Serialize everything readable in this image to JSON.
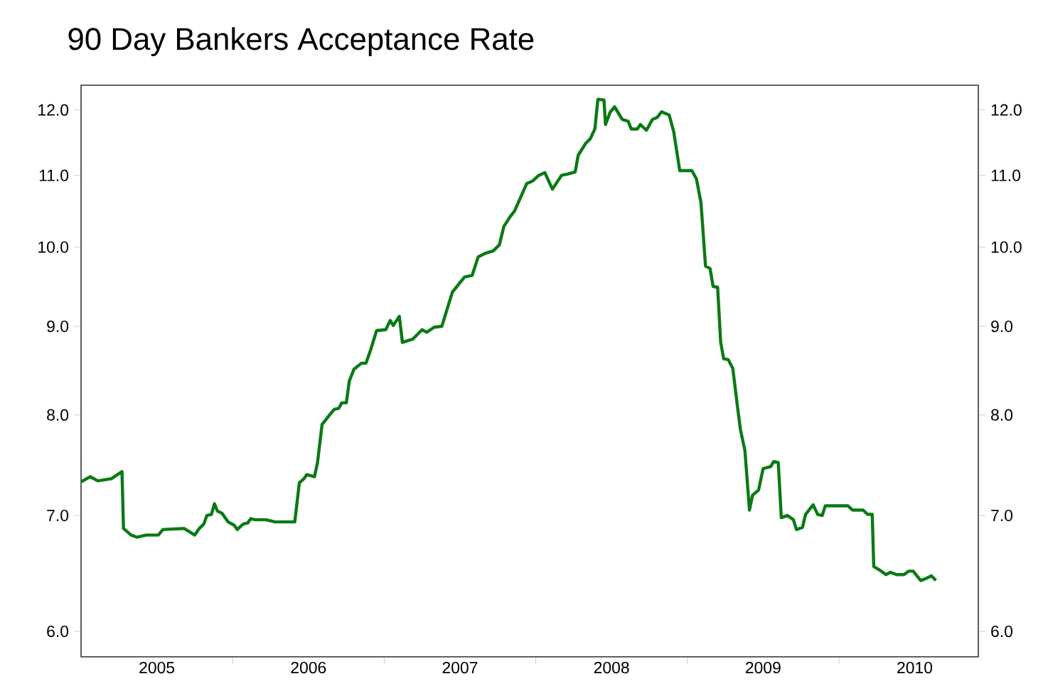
{
  "chart_data": {
    "type": "line",
    "title": "90 Day Bankers  Acceptance Rate",
    "log": "y",
    "xlim": [
      2005.0,
      2010.92
    ],
    "xticks": [
      {
        "value": 2005.5,
        "label": "2005"
      },
      {
        "value": 2006,
        "label": null
      },
      {
        "value": 2006.5,
        "label": "2006"
      },
      {
        "value": 2007,
        "label": null
      },
      {
        "value": 2007.5,
        "label": "2007"
      },
      {
        "value": 2008,
        "label": null
      },
      {
        "value": 2008.5,
        "label": "2008"
      },
      {
        "value": 2009,
        "label": null
      },
      {
        "value": 2009.5,
        "label": "2009"
      },
      {
        "value": 2010,
        "label": null
      },
      {
        "value": 2010.5,
        "label": "2010"
      }
    ],
    "ylim": [
      5.8,
      12.4
    ],
    "yticks": [
      {
        "value": 6,
        "label": "6.0"
      },
      {
        "value": 7,
        "label": "7.0"
      },
      {
        "value": 8,
        "label": "8.0"
      },
      {
        "value": 9,
        "label": "9.0"
      },
      {
        "value": 10,
        "label": "10.0"
      },
      {
        "value": 11,
        "label": "11.0"
      },
      {
        "value": 12,
        "label": "12.0"
      }
    ],
    "series": [
      {
        "color": "#0a7a14",
        "x": [
          2005.0,
          2005.06,
          2005.11,
          2005.2,
          2005.27,
          2005.28,
          2005.33,
          2005.37,
          2005.43,
          2005.51,
          2005.54,
          2005.68,
          2005.75,
          2005.78,
          2005.81,
          2005.83,
          2005.86,
          2005.88,
          2005.9,
          2005.93,
          2005.97,
          2006.01,
          2006.03,
          2006.07,
          2006.1,
          2006.12,
          2006.15,
          2006.22,
          2006.28,
          2006.41,
          2006.44,
          2006.47,
          2006.49,
          2006.54,
          2006.56,
          2006.59,
          2006.64,
          2006.67,
          2006.7,
          2006.72,
          2006.75,
          2006.77,
          2006.8,
          2006.85,
          2006.88,
          2006.91,
          2006.95,
          2007.01,
          2007.04,
          2007.06,
          2007.1,
          2007.12,
          2007.19,
          2007.25,
          2007.28,
          2007.33,
          2007.38,
          2007.45,
          2007.53,
          2007.58,
          2007.62,
          2007.67,
          2007.72,
          2007.76,
          2007.79,
          2007.83,
          2007.86,
          2007.94,
          2007.98,
          2008.02,
          2008.06,
          2008.11,
          2008.17,
          2008.21,
          2008.26,
          2008.28,
          2008.33,
          2008.36,
          2008.39,
          2008.41,
          2008.45,
          2008.46,
          2008.49,
          2008.52,
          2008.57,
          2008.61,
          2008.63,
          2008.67,
          2008.69,
          2008.73,
          2008.77,
          2008.8,
          2008.83,
          2008.88,
          2008.91,
          2008.95,
          2009.03,
          2009.06,
          2009.09,
          2009.12,
          2009.15,
          2009.17,
          2009.2,
          2009.22,
          2009.24,
          2009.27,
          2009.3,
          2009.33,
          2009.35,
          2009.38,
          2009.41,
          2009.43,
          2009.47,
          2009.5,
          2009.55,
          2009.57,
          2009.6,
          2009.62,
          2009.66,
          2009.7,
          2009.72,
          2009.76,
          2009.78,
          2009.83,
          2009.86,
          2009.89,
          2009.91,
          2010.06,
          2010.09,
          2010.16,
          2010.19,
          2010.22,
          2010.23,
          2010.28,
          2010.31,
          2010.34,
          2010.38,
          2010.43,
          2010.46,
          2010.49,
          2010.54,
          2010.58,
          2010.61,
          2010.64
        ],
        "values": [
          7.32,
          7.37,
          7.33,
          7.35,
          7.42,
          6.88,
          6.82,
          6.8,
          6.82,
          6.82,
          6.87,
          6.88,
          6.82,
          6.88,
          6.92,
          7.0,
          7.01,
          7.11,
          7.04,
          7.02,
          6.94,
          6.91,
          6.87,
          6.92,
          6.93,
          6.97,
          6.96,
          6.96,
          6.94,
          6.94,
          7.31,
          7.35,
          7.39,
          7.37,
          7.51,
          7.9,
          8.0,
          8.06,
          8.07,
          8.13,
          8.13,
          8.37,
          8.5,
          8.57,
          8.57,
          8.72,
          8.95,
          8.96,
          9.07,
          9.01,
          9.12,
          8.81,
          8.85,
          8.96,
          8.93,
          8.99,
          9.0,
          9.42,
          9.61,
          9.63,
          9.87,
          9.92,
          9.95,
          10.03,
          10.28,
          10.41,
          10.49,
          10.88,
          10.92,
          11.0,
          11.04,
          10.8,
          11.0,
          11.02,
          11.05,
          11.3,
          11.48,
          11.55,
          11.7,
          12.17,
          12.16,
          11.77,
          11.96,
          12.05,
          11.85,
          11.82,
          11.7,
          11.7,
          11.77,
          11.68,
          11.85,
          11.88,
          11.97,
          11.92,
          11.66,
          11.07,
          11.07,
          10.95,
          10.61,
          9.75,
          9.72,
          9.49,
          9.48,
          8.81,
          8.62,
          8.61,
          8.51,
          8.1,
          7.85,
          7.63,
          7.05,
          7.19,
          7.24,
          7.45,
          7.47,
          7.52,
          7.51,
          6.98,
          7.0,
          6.96,
          6.87,
          6.89,
          7.01,
          7.1,
          7.01,
          7.0,
          7.09,
          7.09,
          7.05,
          7.05,
          7.01,
          7.01,
          6.54,
          6.5,
          6.47,
          6.49,
          6.47,
          6.47,
          6.5,
          6.5,
          6.42,
          6.44,
          6.46,
          6.42
        ]
      }
    ]
  }
}
